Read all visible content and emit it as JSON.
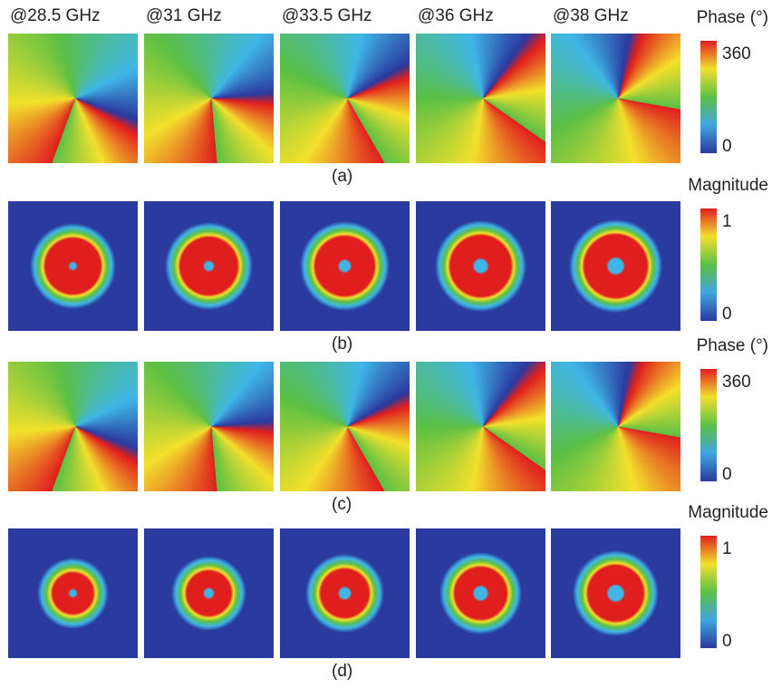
{
  "columns": [
    "@28.5 GHz",
    "@31 GHz",
    "@33.5 GHz",
    "@36 GHz",
    "@38 GHz"
  ],
  "panels": [
    {
      "label": "(a)",
      "colorbar": {
        "title": "Phase (°)",
        "max": "360",
        "min": "0"
      }
    },
    {
      "label": "(b)",
      "colorbar": {
        "title": "Magnitude",
        "max": "1",
        "min": "0"
      }
    },
    {
      "label": "(c)",
      "colorbar": {
        "title": "Phase (°)",
        "max": "360",
        "min": "0"
      }
    },
    {
      "label": "(d)",
      "colorbar": {
        "title": "Magnitude",
        "max": "1",
        "min": "0"
      }
    }
  ]
}
